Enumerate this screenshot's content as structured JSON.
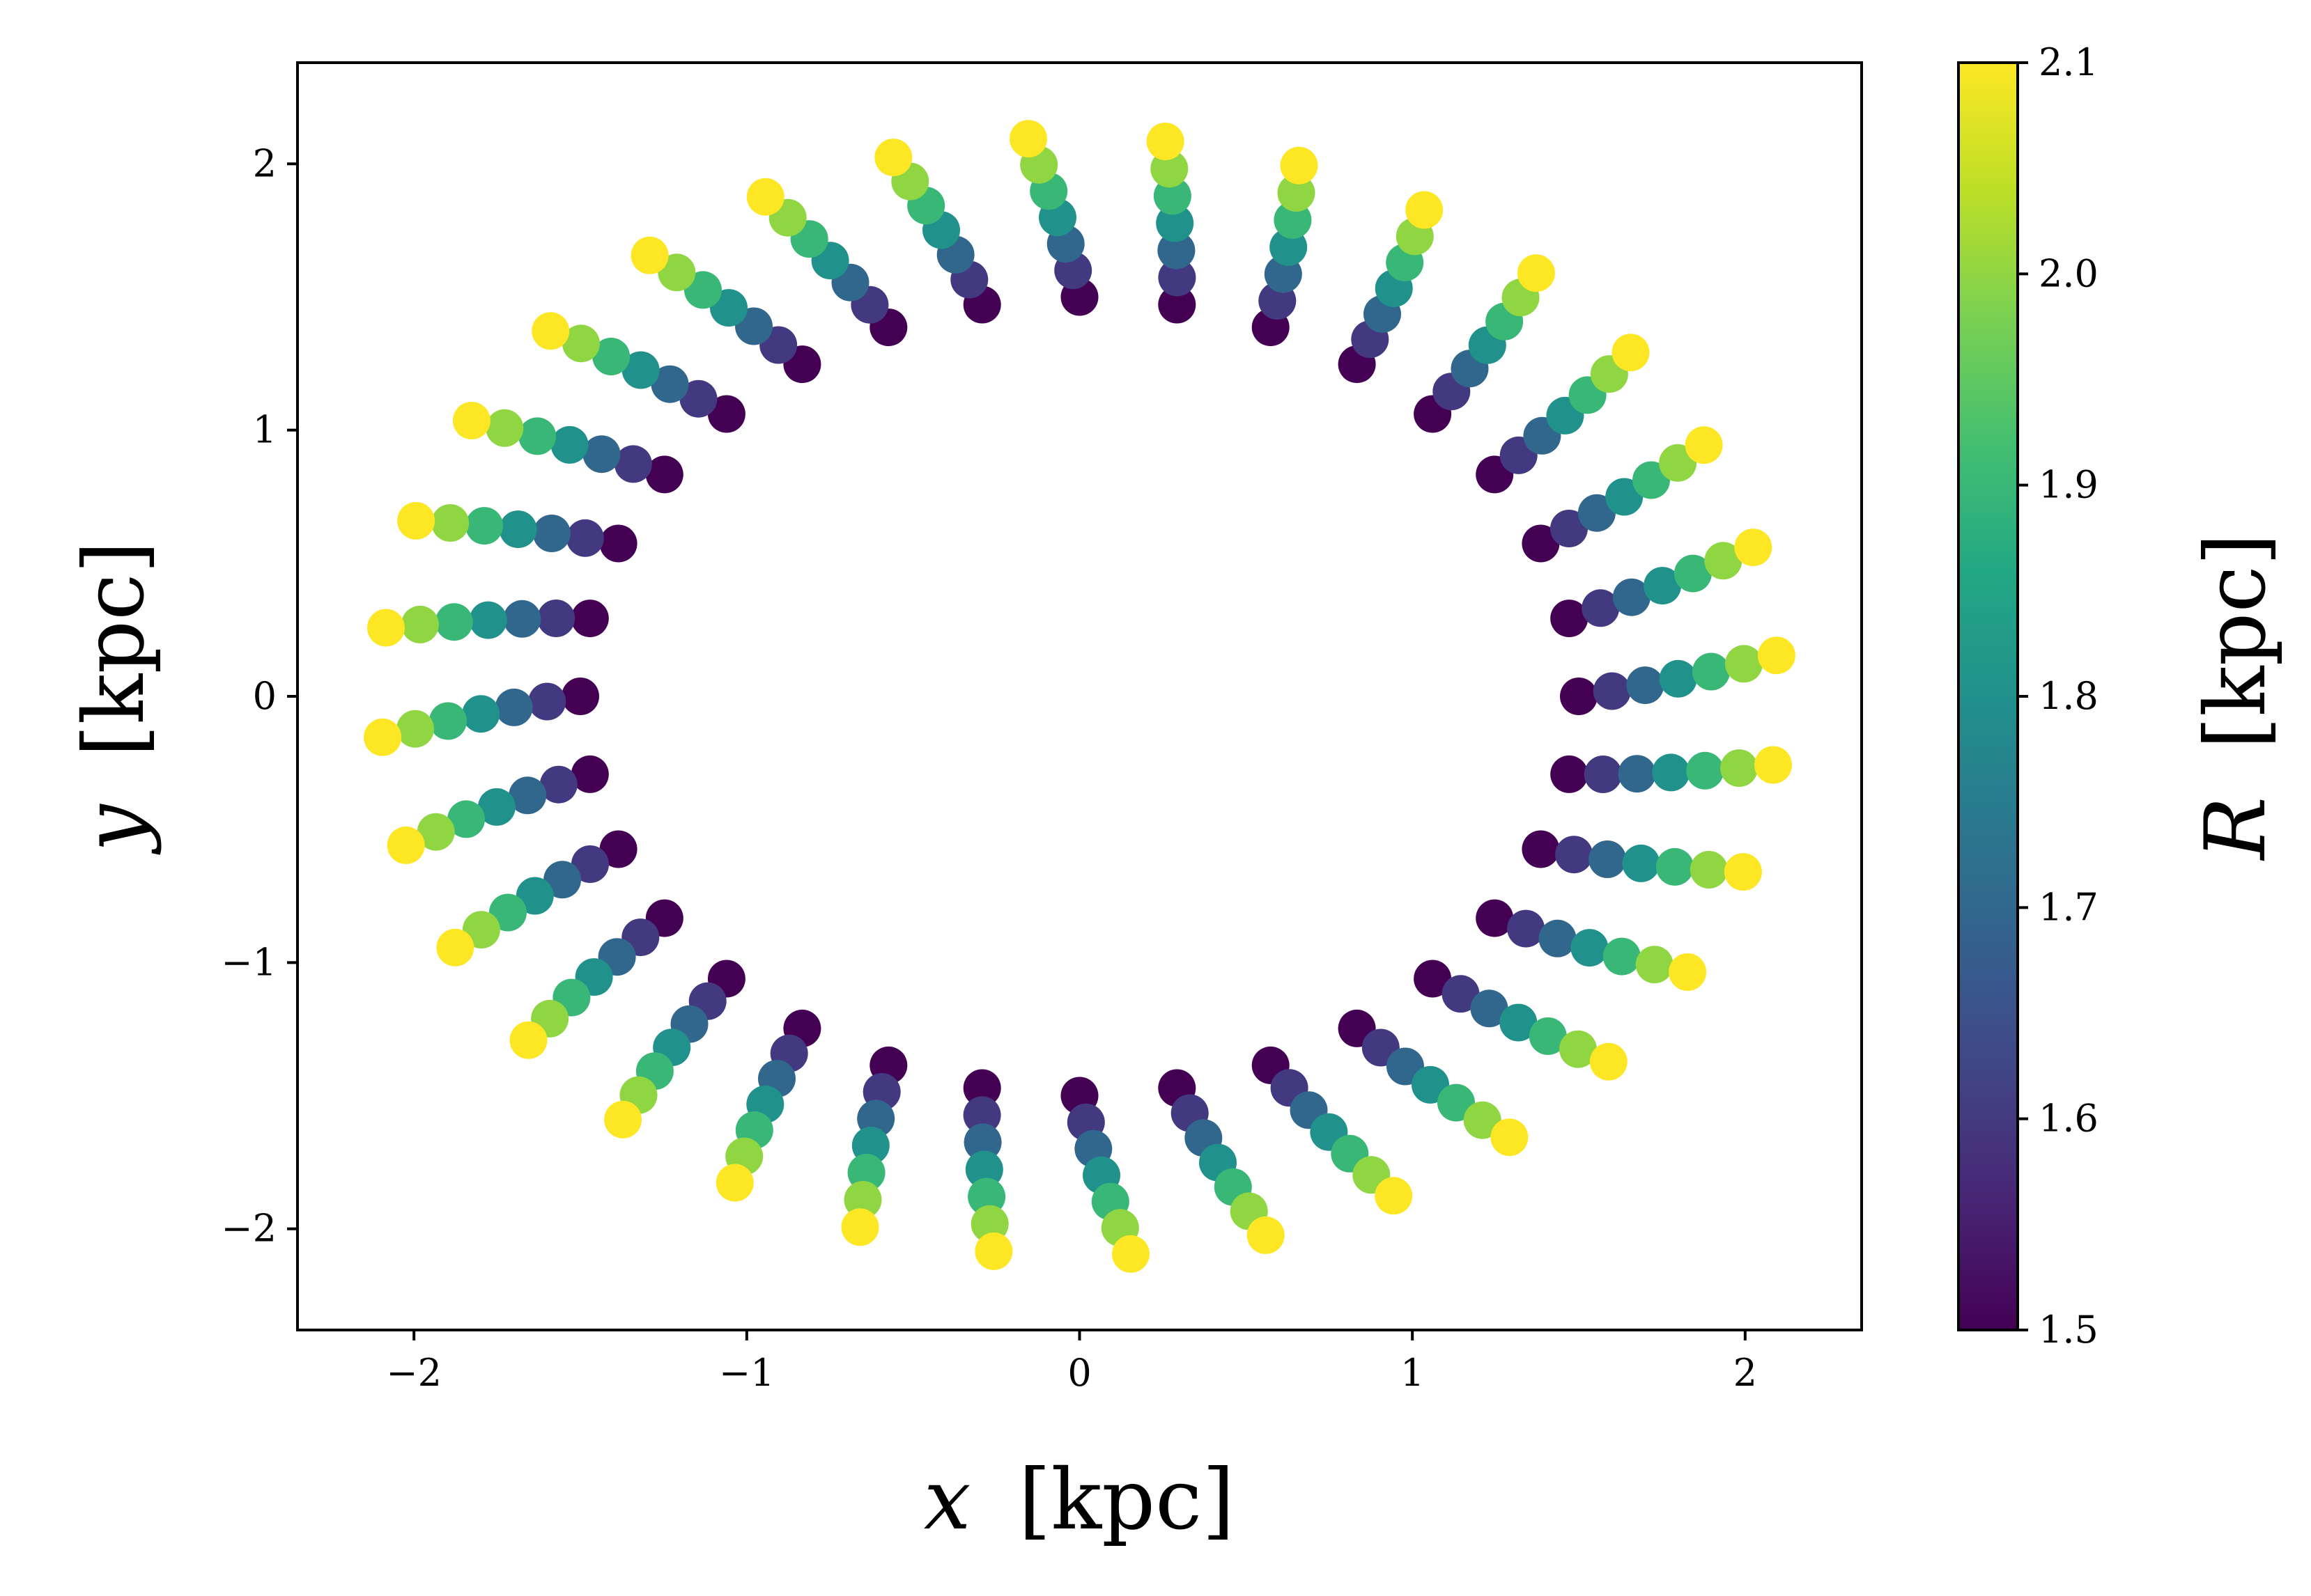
{
  "chart_data": {
    "type": "scatter",
    "title": "",
    "xlabel": {
      "var": "x",
      "unit": "[kpc]"
    },
    "ylabel": {
      "var": "y",
      "unit": "[kpc]"
    },
    "xlim": [
      -2.35,
      2.35
    ],
    "ylim": [
      -2.38,
      2.38
    ],
    "x_ticks": [
      -2,
      -1,
      0,
      1,
      2
    ],
    "y_ticks": [
      -2,
      -1,
      0,
      1,
      2
    ],
    "x_tick_labels": [
      "−2",
      "−1",
      "0",
      "1",
      "2"
    ],
    "y_tick_labels": [
      "−2",
      "−1",
      "0",
      "1",
      "2"
    ],
    "grid": false,
    "colormap": "viridis",
    "series": {
      "description": "Radial spokes of points; each spoke has points at radii R colored by R",
      "num_spokes": 32,
      "angle_offset_deg": 0,
      "radii": [
        1.5,
        1.6,
        1.7,
        1.8,
        1.9,
        2.0,
        2.1
      ],
      "twist_deg_per_kpc": 7
    },
    "colorbar": {
      "label": {
        "var": "R",
        "unit": "[kpc]"
      },
      "vmin": 1.5,
      "vmax": 2.1,
      "ticks": [
        1.5,
        1.6,
        1.7,
        1.8,
        1.9,
        2.0,
        2.1
      ],
      "tick_labels": [
        "1.5",
        "1.6",
        "1.7",
        "1.8",
        "1.9",
        "2.0",
        "2.1"
      ]
    }
  }
}
